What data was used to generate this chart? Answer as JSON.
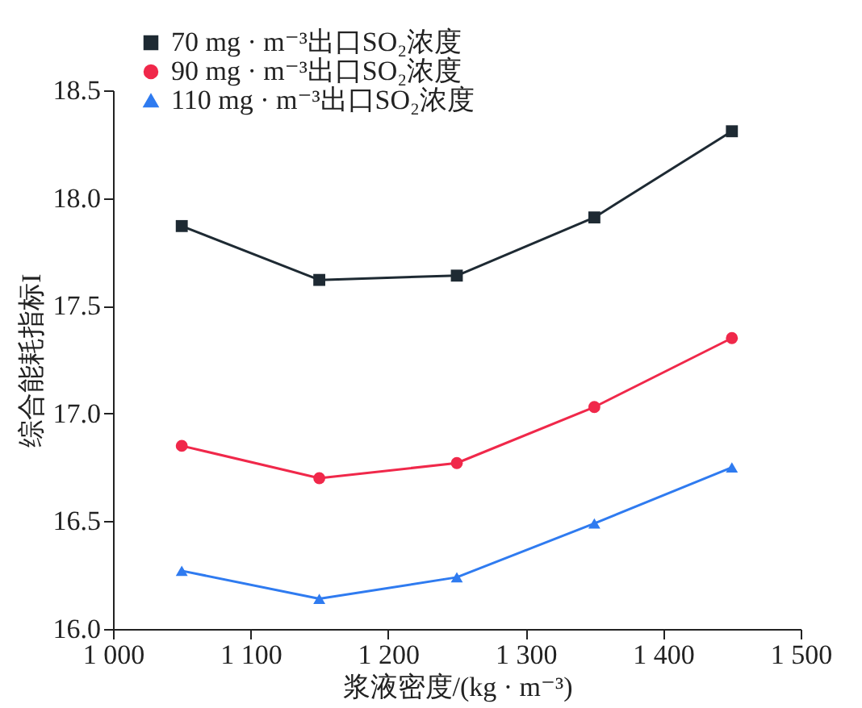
{
  "chart_data": {
    "type": "line",
    "xlabel": "浆液密度/(kg · m⁻³)",
    "ylabel": "综合能耗指标I",
    "x": [
      1050,
      1150,
      1250,
      1350,
      1450
    ],
    "series": [
      {
        "name": "70 mg · m⁻³出口SO₂浓度",
        "color": "#1e2a33",
        "marker": "square",
        "values": [
          17.87,
          17.62,
          17.64,
          17.91,
          18.31
        ]
      },
      {
        "name": "90 mg · m⁻³出口SO₂浓度",
        "color": "#f0284a",
        "marker": "circle",
        "values": [
          16.85,
          16.7,
          16.77,
          17.03,
          17.35
        ]
      },
      {
        "name": "110 mg · m⁻³出口SO₂浓度",
        "color": "#2f7bf0",
        "marker": "triangle",
        "values": [
          16.27,
          16.14,
          16.24,
          16.49,
          16.75
        ]
      }
    ],
    "xlim": [
      1000,
      1500
    ],
    "xticks": [
      {
        "value": 1000,
        "label": "1 000"
      },
      {
        "value": 1100,
        "label": "1 100"
      },
      {
        "value": 1200,
        "label": "1 200"
      },
      {
        "value": 1300,
        "label": "1 300"
      },
      {
        "value": 1400,
        "label": "1 400"
      },
      {
        "value": 1500,
        "label": "1 500"
      }
    ],
    "ylim": [
      16,
      18.5
    ],
    "yticks": [
      {
        "value": 16,
        "label": "16.0"
      },
      {
        "value": 16.5,
        "label": "16.5"
      },
      {
        "value": 17,
        "label": "17.0"
      },
      {
        "value": 17.5,
        "label": "17.5"
      },
      {
        "value": 18,
        "label": "18.0"
      },
      {
        "value": 18.5,
        "label": "18.5"
      }
    ],
    "grid": false,
    "legend": "top left",
    "line_style": "solid"
  }
}
